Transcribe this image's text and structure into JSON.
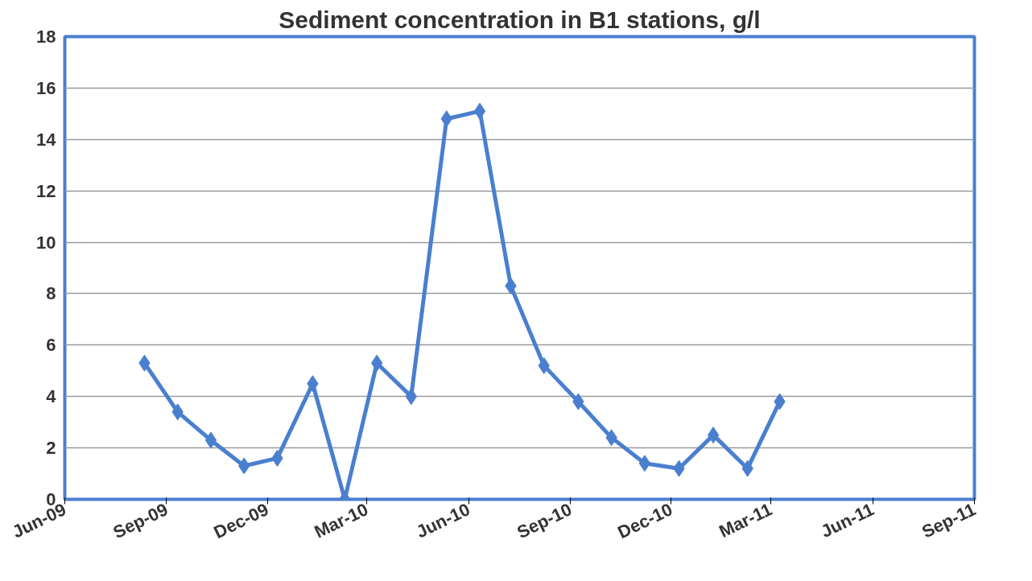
{
  "chart_data": {
    "type": "line",
    "title": "Sediment concentration in B1 stations, g/l",
    "x": [
      "2009-08-12",
      "2009-09-11",
      "2009-10-11",
      "2009-11-10",
      "2009-12-10",
      "2010-01-11",
      "2010-02-09",
      "2010-03-10",
      "2010-04-10",
      "2010-05-12",
      "2010-06-11",
      "2010-07-09",
      "2010-08-08",
      "2010-09-08",
      "2010-10-08",
      "2010-11-07",
      "2010-12-08",
      "2011-01-08",
      "2011-02-08",
      "2011-03-09"
    ],
    "series": [
      {
        "color": "#4a7fcf",
        "values": [
          5.3,
          3.4,
          2.3,
          1.3,
          1.6,
          4.5,
          0,
          5.3,
          4.0,
          14.8,
          15.1,
          8.3,
          5.2,
          3.8,
          2.4,
          1.4,
          1.2,
          2.5,
          1.2,
          3.8
        ]
      }
    ],
    "xlim": [
      "2009-06-01",
      "2011-09-01"
    ],
    "xticks": [
      {
        "value": "2009-06-01",
        "label": "Jun-09"
      },
      {
        "value": "2009-09-01",
        "label": "Sep-09"
      },
      {
        "value": "2009-12-01",
        "label": "Dec-09"
      },
      {
        "value": "2010-03-01",
        "label": "Mar-10"
      },
      {
        "value": "2010-06-01",
        "label": "Jun-10"
      },
      {
        "value": "2010-09-01",
        "label": "Sep-10"
      },
      {
        "value": "2010-12-01",
        "label": "Dec-10"
      },
      {
        "value": "2011-03-01",
        "label": "Mar-11"
      },
      {
        "value": "2011-06-01",
        "label": "Jun-11"
      },
      {
        "value": "2011-09-01",
        "label": "Sep-11"
      }
    ],
    "ylim": [
      0,
      18
    ],
    "yticks": [
      0,
      2,
      4,
      6,
      8,
      10,
      12,
      14,
      16,
      18
    ],
    "grid": "y",
    "marker": "diamond",
    "line_style": "solid"
  }
}
